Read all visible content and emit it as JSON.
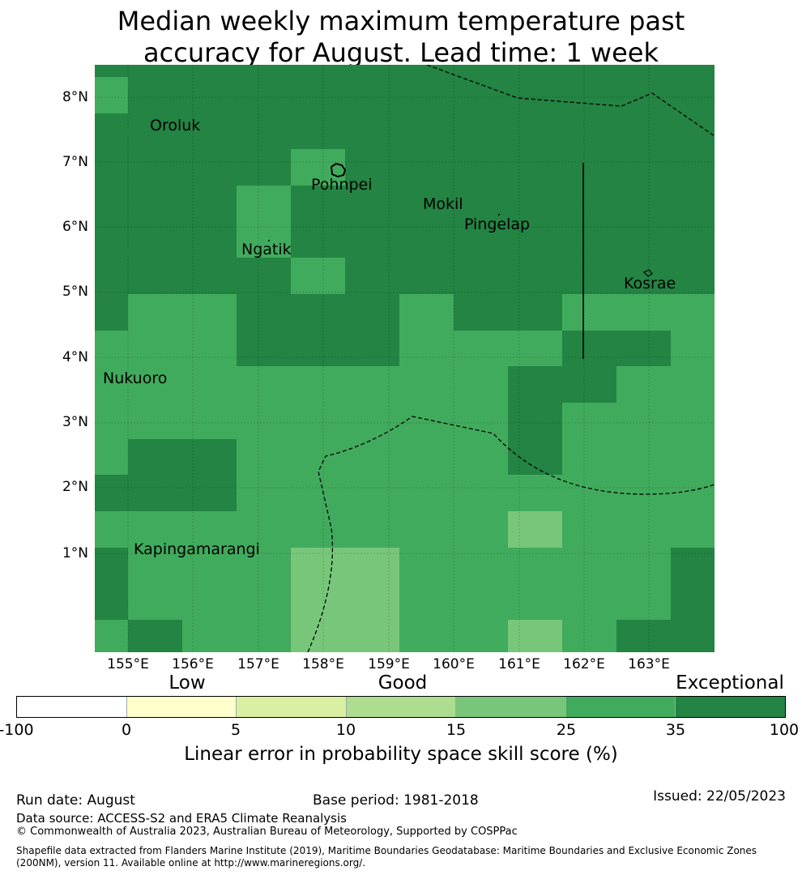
{
  "title_line1": "Median weekly maximum temperature past",
  "title_line2": "accuracy for August. Lead time: 1 week",
  "map": {
    "lat_labels": [
      "8°N",
      "7°N",
      "6°N",
      "5°N",
      "4°N",
      "3°N",
      "2°N",
      "1°N"
    ],
    "lon_labels": [
      "155°E",
      "156°E",
      "157°E",
      "158°E",
      "159°E",
      "160°E",
      "161°E",
      "162°E",
      "163°E"
    ],
    "places": [
      {
        "name": "Oroluk"
      },
      {
        "name": "Pohnpei"
      },
      {
        "name": "Mokil"
      },
      {
        "name": "Pingelap"
      },
      {
        "name": "Ngatik"
      },
      {
        "name": "Kosrae"
      },
      {
        "name": "Nukuoro"
      },
      {
        "name": "Kapingamarangi"
      }
    ],
    "skill_category_colors": {
      "light_25_35": "#41ab5d",
      "dark_35_100": "#238443",
      "pale_15_25": "#78c679"
    }
  },
  "colorbar": {
    "category_labels": [
      "Low",
      "Good",
      "Exceptional"
    ],
    "colors": [
      "#ffffff",
      "#ffffcc",
      "#d9f0a3",
      "#addd8e",
      "#78c679",
      "#41ab5d",
      "#238443"
    ],
    "ticks": [
      "-100",
      "0",
      "5",
      "10",
      "15",
      "25",
      "35",
      "100"
    ],
    "label": "Linear error in probability space skill score (%)"
  },
  "footer": {
    "run_date": "Run date: August",
    "base_period": "Base period: 1981-2018",
    "issued": "Issued: 22/05/2023",
    "data_source": "Data source: ACCESS-S2 and ERA5 Climate Reanalysis",
    "copyright": "© Commonwealth of Australia 2023, Australian Bureau of Meteorology, Supported by COSPPac",
    "shapefile_line1": "Shapefile data extracted from Flanders Marine Institute (2019), Maritime Boundaries Geodatabase: Maritime Boundaries and Exclusive Economic Zones",
    "shapefile_line2": "(200NM), version 11. Available online at http://www.marineregions.org/."
  }
}
